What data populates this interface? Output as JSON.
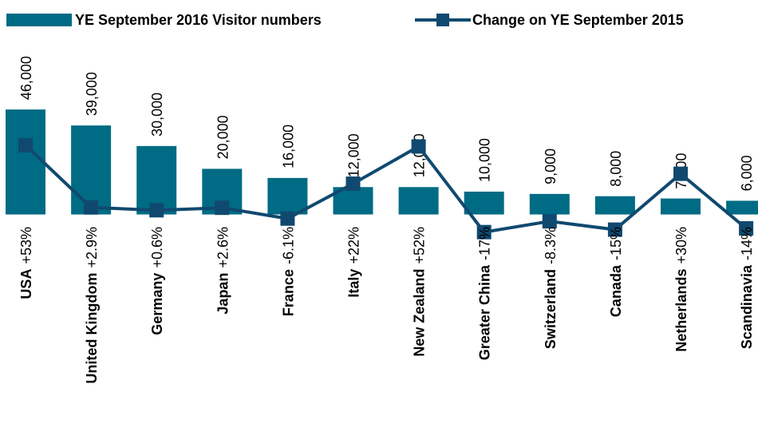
{
  "chart_data": {
    "type": "bar-line",
    "categories": [
      "USA",
      "United Kingdom",
      "Germany",
      "Japan",
      "France",
      "Italy",
      "New Zealand",
      "Greater China",
      "Switzerland",
      "Canada",
      "Netherlands",
      "Scandinavia"
    ],
    "series": [
      {
        "name": "YE September 2016 Visitor numbers",
        "type": "bar",
        "color": "#006b84",
        "values": [
          46000,
          39000,
          30000,
          20000,
          16000,
          12000,
          12000,
          10000,
          9000,
          8000,
          7000,
          6000
        ],
        "value_labels": [
          "46,000",
          "39,000",
          "30,000",
          "20,000",
          "16,000",
          "12,000",
          "12,000",
          "10,000",
          "9,000",
          "8,000",
          "7,000",
          "6,000"
        ]
      },
      {
        "name": "Change on YE September 2015",
        "type": "line",
        "axis": "y2",
        "color": "#10496f",
        "values": [
          53,
          2.9,
          0.6,
          2.6,
          -6.1,
          22,
          52,
          -17,
          -8.3,
          -15,
          30,
          -14
        ],
        "value_labels": [
          "+53%",
          "+2.9%",
          "+0.6%",
          "+2.6%",
          "-6.1%",
          "+22%",
          "+52%",
          "-17%",
          "-8.3%",
          "-15%",
          "+30%",
          "-14%"
        ]
      }
    ],
    "ylim": [
      -11000,
      94000
    ],
    "y2lim": [
      -23,
      170
    ],
    "legend": "top"
  }
}
